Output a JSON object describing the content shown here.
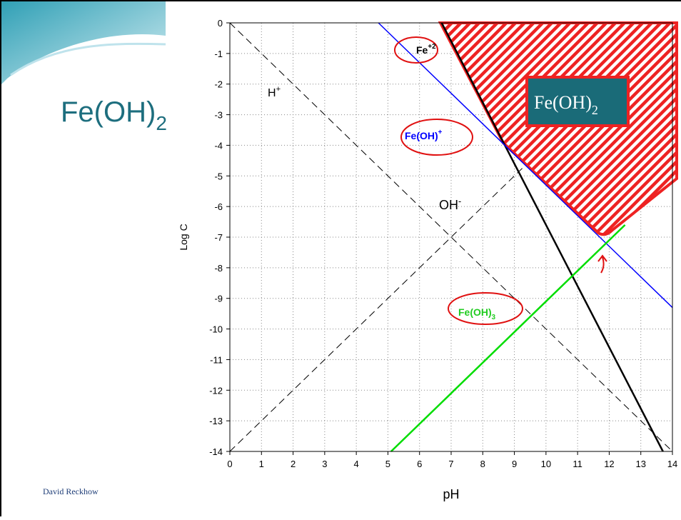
{
  "slide": {
    "title": "Fe(OH)",
    "title_sub": "2",
    "footer": "David Reckhow"
  },
  "chart_data": {
    "type": "line",
    "x_label": "pH",
    "y_label": "Log C",
    "xlim": [
      0,
      14
    ],
    "ylim": [
      -14,
      0
    ],
    "xticks": [
      0,
      1,
      2,
      3,
      4,
      5,
      6,
      7,
      8,
      9,
      10,
      11,
      12,
      13,
      14
    ],
    "yticks": [
      0,
      -1,
      -2,
      -3,
      -4,
      -5,
      -6,
      -7,
      -8,
      -9,
      -10,
      -11,
      -12,
      -13,
      -14
    ],
    "grid": true,
    "series": [
      {
        "label": "H",
        "label_sup": "+",
        "color": "#000000",
        "dashed": true,
        "x": [
          0,
          14
        ],
        "values": [
          0,
          -14
        ]
      },
      {
        "label": "OH",
        "label_sup": "-",
        "color": "#000000",
        "dashed": true,
        "x": [
          0,
          9.3
        ],
        "values": [
          -14,
          -4.7
        ]
      },
      {
        "label": "Fe",
        "label_sup": "+2",
        "color": "#000000",
        "dashed": false,
        "x": [
          6.7,
          13.7
        ],
        "values": [
          0,
          -14
        ]
      },
      {
        "label": "Fe(OH)",
        "label_sup": "+",
        "color": "#0000ff",
        "dashed": false,
        "x": [
          4.7,
          14
        ],
        "values": [
          0,
          -9.3
        ]
      },
      {
        "label": "Fe(OH)",
        "label_sub": "3",
        "color": "#00dd00",
        "dashed": false,
        "x": [
          5.1,
          12.5
        ],
        "values": [
          -14,
          -6.6
        ]
      }
    ],
    "region_label": "Fe(OH)",
    "region_label_sub": "2"
  }
}
